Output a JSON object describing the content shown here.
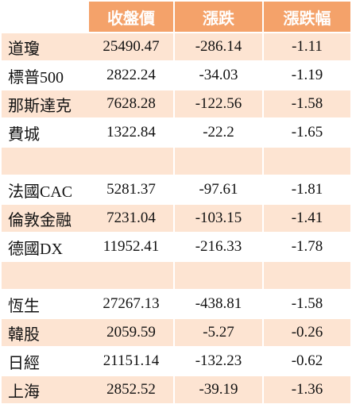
{
  "table": {
    "header": [
      "收盤價",
      "漲跌",
      "漲跌幅"
    ],
    "groups": [
      [
        [
          "道瓊",
          "25490.47",
          "-286.14",
          "-1.11"
        ],
        [
          "標普500",
          "2822.24",
          "-34.03",
          "-1.19"
        ],
        [
          "那斯達克",
          "7628.28",
          "-122.56",
          "-1.58"
        ],
        [
          "費城",
          "1322.84",
          "-22.2",
          "-1.65"
        ]
      ],
      [
        [
          "法國CAC",
          "5281.37",
          "-97.61",
          "-1.81"
        ],
        [
          "倫敦金融",
          "7231.04",
          "-103.15",
          "-1.41"
        ],
        [
          "德國DX",
          "11952.41",
          "-216.33",
          "-1.78"
        ]
      ],
      [
        [
          "恆生",
          "27267.13",
          "-438.81",
          "-1.58"
        ],
        [
          "韓股",
          "2059.59",
          "-5.27",
          "-0.26"
        ],
        [
          "日經",
          "21151.14",
          "-132.23",
          "-0.62"
        ],
        [
          "上海",
          "2852.52",
          "-39.19",
          "-1.36"
        ]
      ]
    ]
  }
}
